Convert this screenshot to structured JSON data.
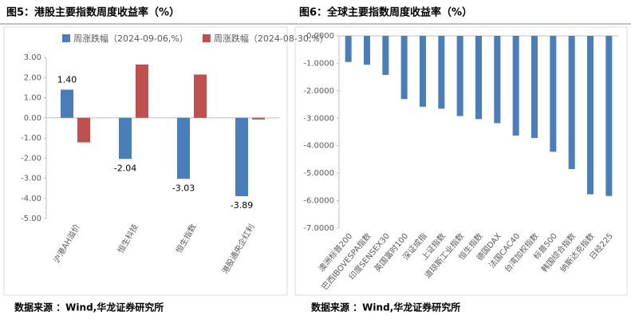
{
  "chart_data": [
    {
      "type": "bar",
      "title": "图5：港股主要指数周度收益率（%）",
      "categories": [
        "沪港AH溢价",
        "恒生科技",
        "恒生指数",
        "港股通央企红利"
      ],
      "series": [
        {
          "name": "周涨跌幅（2024-09-06,%）",
          "color": "#4a7ebb",
          "values": [
            1.4,
            -2.04,
            -3.03,
            -3.89
          ],
          "value_labels": [
            "1.40",
            "-2.04",
            "-3.03",
            "-3.89"
          ]
        },
        {
          "name": "周涨跌幅（2024-08-30,%）",
          "color": "#c0504d",
          "values": [
            -1.22,
            2.65,
            2.15,
            -0.08
          ]
        }
      ],
      "ylim": [
        -5,
        3
      ],
      "yticks": [
        {
          "value": -5,
          "label": "-5.00"
        },
        {
          "value": -4,
          "label": "-4.00"
        },
        {
          "value": -3,
          "label": "-3.00"
        },
        {
          "value": -2,
          "label": "-2.00"
        },
        {
          "value": -1,
          "label": "-1.00"
        },
        {
          "value": 0,
          "label": "0.00"
        },
        {
          "value": 1,
          "label": "1.00"
        },
        {
          "value": 2,
          "label": "2.00"
        },
        {
          "value": 3,
          "label": "3.00"
        }
      ],
      "source": "数据来源 ：Wind,华龙证券研究所"
    },
    {
      "type": "bar",
      "title": "图6：全球主要指数周度收益率（%）",
      "categories": [
        "澳洲标普200",
        "巴西IBOVESPA指数",
        "印度SENSEX30",
        "英国富时100",
        "深证成指",
        "上证指数",
        "道琼斯工业指数",
        "恒生指数",
        "德国DAX",
        "法国CAC40",
        "台湾加权指数",
        "标普500",
        "韩国综合指数",
        "纳斯达克指数",
        "日经225"
      ],
      "series": [
        {
          "color": "#4a7ebb",
          "values": [
            -0.95,
            -1.05,
            -1.42,
            -2.3,
            -2.58,
            -2.65,
            -2.92,
            -3.03,
            -3.18,
            -3.63,
            -3.72,
            -4.22,
            -4.85,
            -5.77,
            -5.83
          ]
        }
      ],
      "ylim": [
        -7,
        0
      ],
      "yticks": [
        {
          "value": 0,
          "label": "0.0000"
        },
        {
          "value": -1,
          "label": "-1.0000"
        },
        {
          "value": -2,
          "label": "-2.0000"
        },
        {
          "value": -3,
          "label": "-3.0000"
        },
        {
          "value": -4,
          "label": "-4.0000"
        },
        {
          "value": -5,
          "label": "-5.0000"
        },
        {
          "value": -6,
          "label": "-6.0000"
        },
        {
          "value": -7,
          "label": "-7.0000"
        }
      ],
      "source": "数据来源 ：Wind,华龙证券研究所"
    }
  ]
}
